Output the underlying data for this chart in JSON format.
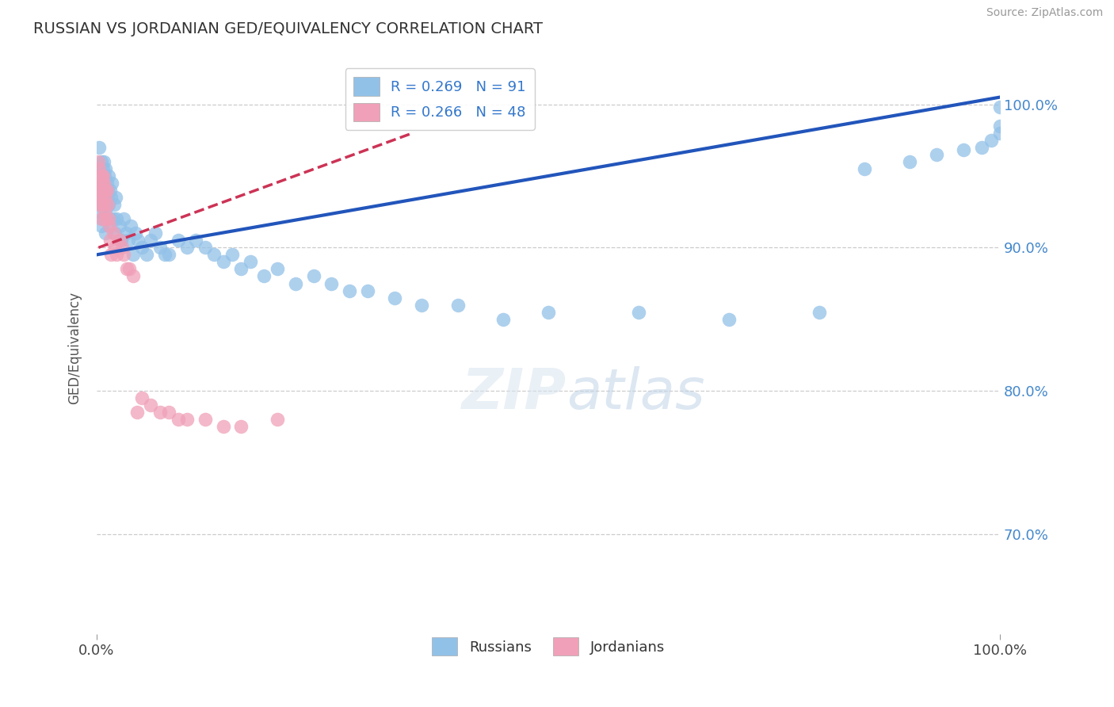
{
  "title": "RUSSIAN VS JORDANIAN GED/EQUIVALENCY CORRELATION CHART",
  "source": "Source: ZipAtlas.com",
  "ylabel": "GED/Equivalency",
  "russian_R": 0.269,
  "russian_N": 91,
  "jordanian_R": 0.266,
  "jordanian_N": 48,
  "russian_color": "#92C1E8",
  "jordanian_color": "#F0A0B8",
  "russian_line_color": "#2255BB",
  "jordanian_line_color": "#CC3355",
  "background_color": "#FFFFFF",
  "xlim": [
    0.0,
    1.0
  ],
  "ylim": [
    0.63,
    1.03
  ],
  "ytick_vals": [
    0.7,
    0.8,
    0.9,
    1.0
  ],
  "ytick_labels": [
    "70.0%",
    "80.0%",
    "90.0%",
    "100.0%"
  ],
  "russian_x": [
    0.002,
    0.003,
    0.003,
    0.004,
    0.004,
    0.005,
    0.005,
    0.005,
    0.005,
    0.006,
    0.006,
    0.006,
    0.007,
    0.007,
    0.007,
    0.007,
    0.008,
    0.008,
    0.008,
    0.009,
    0.009,
    0.009,
    0.01,
    0.01,
    0.01,
    0.01,
    0.011,
    0.011,
    0.012,
    0.012,
    0.013,
    0.013,
    0.014,
    0.015,
    0.015,
    0.016,
    0.017,
    0.018,
    0.019,
    0.02,
    0.021,
    0.022,
    0.025,
    0.027,
    0.03,
    0.032,
    0.035,
    0.038,
    0.04,
    0.043,
    0.046,
    0.05,
    0.055,
    0.06,
    0.065,
    0.07,
    0.075,
    0.08,
    0.09,
    0.1,
    0.11,
    0.12,
    0.13,
    0.14,
    0.15,
    0.16,
    0.17,
    0.185,
    0.2,
    0.22,
    0.24,
    0.26,
    0.28,
    0.3,
    0.33,
    0.36,
    0.4,
    0.45,
    0.5,
    0.6,
    0.7,
    0.8,
    0.85,
    0.9,
    0.93,
    0.96,
    0.98,
    0.99,
    1.0,
    1.0,
    1.0
  ],
  "russian_y": [
    0.955,
    0.97,
    0.94,
    0.955,
    0.925,
    0.96,
    0.945,
    0.93,
    0.915,
    0.95,
    0.935,
    0.945,
    0.955,
    0.94,
    0.92,
    0.93,
    0.96,
    0.945,
    0.93,
    0.95,
    0.94,
    0.92,
    0.955,
    0.94,
    0.925,
    0.91,
    0.935,
    0.945,
    0.93,
    0.94,
    0.95,
    0.93,
    0.915,
    0.94,
    0.92,
    0.935,
    0.945,
    0.92,
    0.93,
    0.91,
    0.935,
    0.92,
    0.915,
    0.905,
    0.92,
    0.91,
    0.905,
    0.915,
    0.895,
    0.91,
    0.905,
    0.9,
    0.895,
    0.905,
    0.91,
    0.9,
    0.895,
    0.895,
    0.905,
    0.9,
    0.905,
    0.9,
    0.895,
    0.89,
    0.895,
    0.885,
    0.89,
    0.88,
    0.885,
    0.875,
    0.88,
    0.875,
    0.87,
    0.87,
    0.865,
    0.86,
    0.86,
    0.85,
    0.855,
    0.855,
    0.85,
    0.855,
    0.955,
    0.96,
    0.965,
    0.968,
    0.97,
    0.975,
    0.98,
    0.985,
    0.998
  ],
  "jordanian_x": [
    0.002,
    0.002,
    0.003,
    0.003,
    0.003,
    0.003,
    0.004,
    0.004,
    0.004,
    0.005,
    0.005,
    0.005,
    0.006,
    0.006,
    0.007,
    0.007,
    0.008,
    0.008,
    0.009,
    0.009,
    0.01,
    0.01,
    0.011,
    0.012,
    0.013,
    0.014,
    0.015,
    0.016,
    0.018,
    0.02,
    0.022,
    0.025,
    0.028,
    0.03,
    0.033,
    0.036,
    0.04,
    0.045,
    0.05,
    0.06,
    0.07,
    0.08,
    0.09,
    0.1,
    0.12,
    0.14,
    0.16,
    0.2
  ],
  "jordanian_y": [
    0.96,
    0.94,
    0.95,
    0.93,
    0.955,
    0.94,
    0.95,
    0.935,
    0.945,
    0.95,
    0.935,
    0.92,
    0.945,
    0.93,
    0.94,
    0.95,
    0.93,
    0.945,
    0.94,
    0.925,
    0.935,
    0.92,
    0.94,
    0.93,
    0.92,
    0.915,
    0.905,
    0.895,
    0.91,
    0.9,
    0.895,
    0.905,
    0.9,
    0.895,
    0.885,
    0.885,
    0.88,
    0.785,
    0.795,
    0.79,
    0.785,
    0.785,
    0.78,
    0.78,
    0.78,
    0.775,
    0.775,
    0.78
  ]
}
